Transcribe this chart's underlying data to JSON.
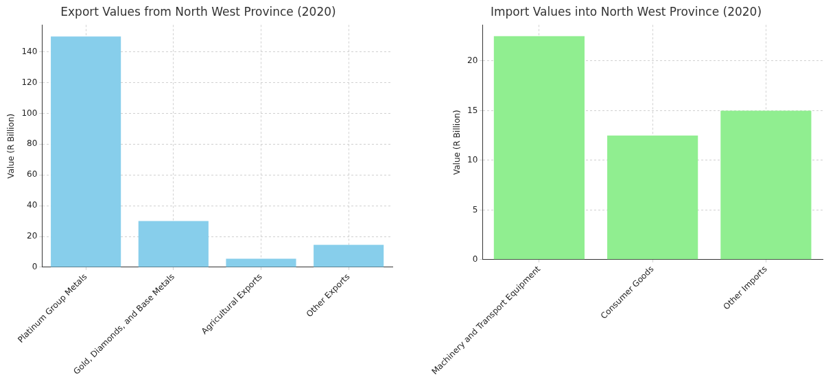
{
  "chart_data": [
    {
      "type": "bar",
      "title": "Export Values from North West Province (2020)",
      "ylabel": "Value (R Billion)",
      "categories": [
        "Platinum Group Metals",
        "Gold, Diamonds, and Base Metals",
        "Agricultural Exports",
        "Other Exports"
      ],
      "values": [
        150,
        30,
        5.5,
        14.5
      ],
      "color": "#87ceeb",
      "ylim": [
        0,
        157.5
      ],
      "yticks": [
        0,
        20,
        40,
        60,
        80,
        100,
        120,
        140
      ],
      "grid": true
    },
    {
      "type": "bar",
      "title": "Import Values into North West Province (2020)",
      "ylabel": "Value (R Billion)",
      "categories": [
        "Machinery and Transport Equipment",
        "Consumer Goods",
        "Other Imports"
      ],
      "values": [
        22.5,
        12.5,
        15
      ],
      "color": "#90ee90",
      "ylim": [
        0,
        23.625
      ],
      "yticks": [
        0,
        5,
        10,
        15,
        20
      ],
      "grid": true
    }
  ]
}
